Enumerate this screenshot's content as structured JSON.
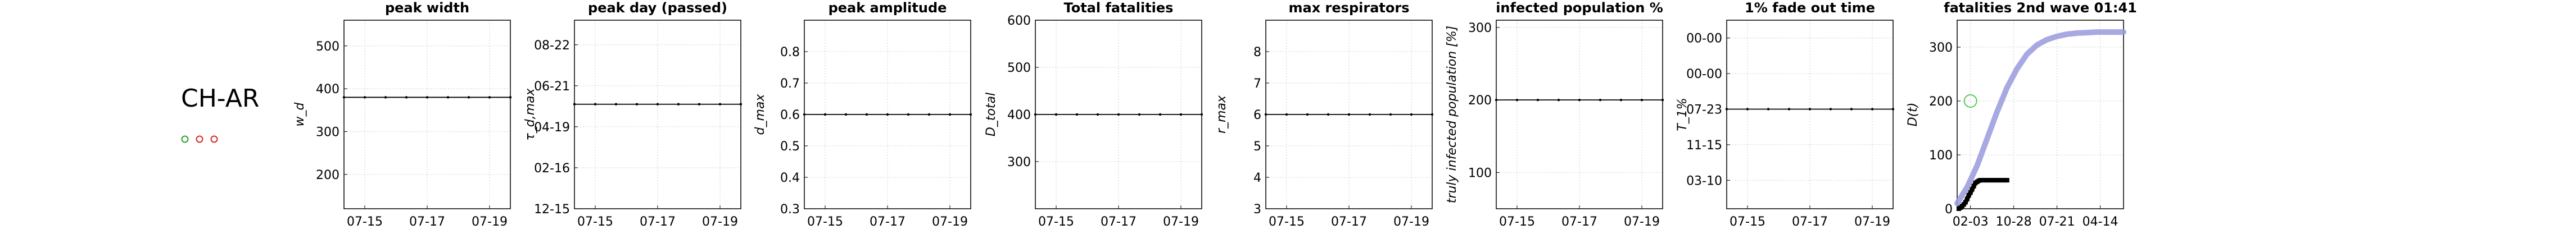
{
  "region": "CH-AR",
  "markers": [
    {
      "color": "#2ca02c"
    },
    {
      "color": "#d62728"
    },
    {
      "color": "#d62728"
    }
  ],
  "chart_data": [
    {
      "type": "line",
      "title": "peak width",
      "ylabel": "w_d",
      "x_ticks": [
        "07-15",
        "07-17",
        "07-19"
      ],
      "y_ticks": [
        {
          "label": "200",
          "value": 200
        },
        {
          "label": "300",
          "value": 300
        },
        {
          "label": "400",
          "value": 400
        },
        {
          "label": "500",
          "value": 500
        }
      ],
      "ylim": [
        120,
        560
      ],
      "xlim": [
        0,
        8
      ],
      "x_tick_values": [
        1,
        4,
        7
      ],
      "series": [
        {
          "x": [
            0,
            1,
            2,
            3,
            4,
            5,
            6,
            7,
            8
          ],
          "values": [
            380,
            380,
            380,
            380,
            380,
            380,
            380,
            380,
            380
          ]
        }
      ]
    },
    {
      "type": "line",
      "title": "peak day (passed)",
      "ylabel": "τ_d,max",
      "x_ticks": [
        "07-15",
        "07-17",
        "07-19"
      ],
      "y_ticks": [
        {
          "label": "12-15",
          "value": 0
        },
        {
          "label": "02-16",
          "value": 1
        },
        {
          "label": "04-19",
          "value": 2
        },
        {
          "label": "06-21",
          "value": 3
        },
        {
          "label": "08-22",
          "value": 4
        }
      ],
      "ylim": [
        0,
        4.6
      ],
      "xlim": [
        0,
        8
      ],
      "x_tick_values": [
        1,
        4,
        7
      ],
      "series": [
        {
          "x": [
            0,
            1,
            2,
            3,
            4,
            5,
            6,
            7,
            8
          ],
          "values": [
            2.55,
            2.55,
            2.55,
            2.55,
            2.55,
            2.55,
            2.55,
            2.55,
            2.55
          ]
        }
      ]
    },
    {
      "type": "line",
      "title": "peak amplitude",
      "ylabel": "d_max",
      "x_ticks": [
        "07-15",
        "07-17",
        "07-19"
      ],
      "y_ticks": [
        {
          "label": "0.3",
          "value": 0.3
        },
        {
          "label": "0.4",
          "value": 0.4
        },
        {
          "label": "0.5",
          "value": 0.5
        },
        {
          "label": "0.6",
          "value": 0.6
        },
        {
          "label": "0.7",
          "value": 0.7
        },
        {
          "label": "0.8",
          "value": 0.8
        }
      ],
      "ylim": [
        0.3,
        0.9
      ],
      "xlim": [
        0,
        8
      ],
      "x_tick_values": [
        1,
        4,
        7
      ],
      "series": [
        {
          "x": [
            0,
            1,
            2,
            3,
            4,
            5,
            6,
            7,
            8
          ],
          "values": [
            0.6,
            0.6,
            0.6,
            0.6,
            0.6,
            0.6,
            0.6,
            0.6,
            0.6
          ]
        }
      ]
    },
    {
      "type": "line",
      "title": "Total fatalities",
      "ylabel": "D_total",
      "x_ticks": [
        "07-15",
        "07-17",
        "07-19"
      ],
      "y_ticks": [
        {
          "label": "300",
          "value": 300
        },
        {
          "label": "400",
          "value": 400
        },
        {
          "label": "500",
          "value": 500
        },
        {
          "label": "600",
          "value": 600
        }
      ],
      "ylim": [
        200,
        600
      ],
      "xlim": [
        0,
        8
      ],
      "x_tick_values": [
        1,
        4,
        7
      ],
      "series": [
        {
          "x": [
            0,
            1,
            2,
            3,
            4,
            5,
            6,
            7,
            8
          ],
          "values": [
            400,
            400,
            400,
            400,
            400,
            400,
            400,
            400,
            400
          ]
        }
      ]
    },
    {
      "type": "line",
      "title": "max respirators",
      "ylabel": "r_max",
      "x_ticks": [
        "07-15",
        "07-17",
        "07-19"
      ],
      "y_ticks": [
        {
          "label": "3",
          "value": 3
        },
        {
          "label": "4",
          "value": 4
        },
        {
          "label": "5",
          "value": 5
        },
        {
          "label": "6",
          "value": 6
        },
        {
          "label": "7",
          "value": 7
        },
        {
          "label": "8",
          "value": 8
        }
      ],
      "ylim": [
        3,
        9
      ],
      "xlim": [
        0,
        8
      ],
      "x_tick_values": [
        1,
        4,
        7
      ],
      "series": [
        {
          "x": [
            0,
            1,
            2,
            3,
            4,
            5,
            6,
            7,
            8
          ],
          "values": [
            6,
            6,
            6,
            6,
            6,
            6,
            6,
            6,
            6
          ]
        }
      ]
    },
    {
      "type": "line",
      "title": "infected population %",
      "ylabel": "truly infected population [%]",
      "x_ticks": [
        "07-15",
        "07-17",
        "07-19"
      ],
      "y_ticks": [
        {
          "label": "100",
          "value": 100
        },
        {
          "label": "200",
          "value": 200
        },
        {
          "label": "300",
          "value": 300
        }
      ],
      "ylim": [
        50,
        310
      ],
      "xlim": [
        0,
        8
      ],
      "x_tick_values": [
        1,
        4,
        7
      ],
      "series": [
        {
          "x": [
            0,
            1,
            2,
            3,
            4,
            5,
            6,
            7,
            8
          ],
          "values": [
            200,
            200,
            200,
            200,
            200,
            200,
            200,
            200,
            200
          ]
        }
      ]
    },
    {
      "type": "line",
      "title": "1% fade out time",
      "ylabel": "T_1%",
      "x_ticks": [
        "07-15",
        "07-17",
        "07-19"
      ],
      "y_ticks": [
        {
          "label": "03-10",
          "value": 0
        },
        {
          "label": "11-15",
          "value": 1
        },
        {
          "label": "07-23",
          "value": 2
        },
        {
          "label": "00-00",
          "value": 3
        },
        {
          "label": "00-00",
          "value": 4
        }
      ],
      "ylim": [
        -0.8,
        4.5
      ],
      "xlim": [
        0,
        8
      ],
      "x_tick_values": [
        1,
        4,
        7
      ],
      "series": [
        {
          "x": [
            0,
            1,
            2,
            3,
            4,
            5,
            6,
            7,
            8
          ],
          "values": [
            2,
            2,
            2,
            2,
            2,
            2,
            2,
            2,
            2
          ]
        }
      ]
    },
    {
      "type": "line",
      "title": "fatalities 2nd wave 01:41",
      "ylabel": "D(t)",
      "x_ticks": [
        "02-03",
        "10-28",
        "07-21",
        "04-14"
      ],
      "y_ticks": [
        {
          "label": "0",
          "value": 0
        },
        {
          "label": "100",
          "value": 100
        },
        {
          "label": "200",
          "value": 200
        },
        {
          "label": "300",
          "value": 300
        }
      ],
      "ylim": [
        0,
        350
      ],
      "xlim": [
        0,
        1000
      ],
      "x_tick_values": [
        80,
        340,
        600,
        860
      ],
      "fit_color": "#9999dd",
      "fit": {
        "x": [
          0,
          60,
          120,
          180,
          240,
          300,
          360,
          420,
          480,
          540,
          600,
          660,
          720,
          780,
          840,
          900,
          960,
          1000
        ],
        "values": [
          10,
          40,
          80,
          130,
          180,
          225,
          260,
          287,
          304,
          314,
          320,
          324,
          326,
          327,
          328,
          328,
          328,
          328
        ]
      },
      "observed_color": "#000000",
      "observed": {
        "x": [
          10,
          20,
          30,
          40,
          50,
          60,
          70,
          80,
          90,
          100,
          110,
          120,
          130,
          140,
          160,
          180,
          200,
          220,
          240,
          260,
          280,
          300
        ],
        "values": [
          0,
          2,
          5,
          8,
          12,
          18,
          25,
          30,
          36,
          42,
          48,
          50,
          52,
          53,
          53,
          53,
          53,
          53,
          53,
          53,
          53,
          53
        ]
      },
      "marker": {
        "x": 80,
        "value": 200,
        "color": "#55cc55"
      }
    }
  ]
}
